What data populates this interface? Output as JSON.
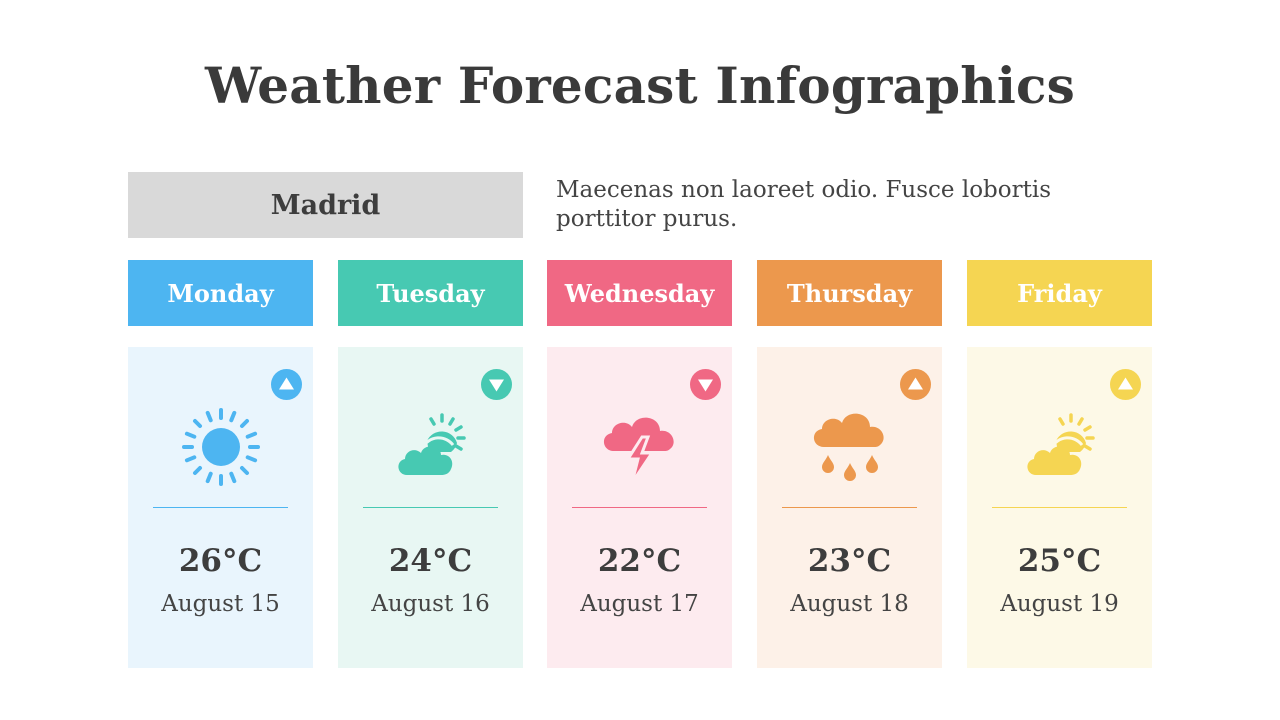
{
  "title": "Weather Forecast Infographics",
  "city": "Madrid",
  "description": "Maecenas non laoreet odio. Fusce lobortis porttitor purus.",
  "days": [
    {
      "day": "Monday",
      "temp": "26°C",
      "date": "August 15",
      "trend": "up",
      "icon": "sun-icon",
      "color": "#4db5f1",
      "bg": "#e9f5fd"
    },
    {
      "day": "Tuesday",
      "temp": "24°C",
      "date": "August 16",
      "trend": "down",
      "icon": "partly-cloudy-icon",
      "color": "#47c9b2",
      "bg": "#e8f7f3"
    },
    {
      "day": "Wednesday",
      "temp": "22°C",
      "date": "August 17",
      "trend": "down",
      "icon": "thunderstorm-icon",
      "color": "#f06884",
      "bg": "#fdebef"
    },
    {
      "day": "Thursday",
      "temp": "23°C",
      "date": "August 18",
      "trend": "up",
      "icon": "rain-cloud-icon",
      "color": "#ec984d",
      "bg": "#fdf1e8"
    },
    {
      "day": "Friday",
      "temp": "25°C",
      "date": "August 19",
      "trend": "up",
      "icon": "partly-cloudy-icon",
      "color": "#f5d552",
      "bg": "#fdf9e7"
    }
  ]
}
